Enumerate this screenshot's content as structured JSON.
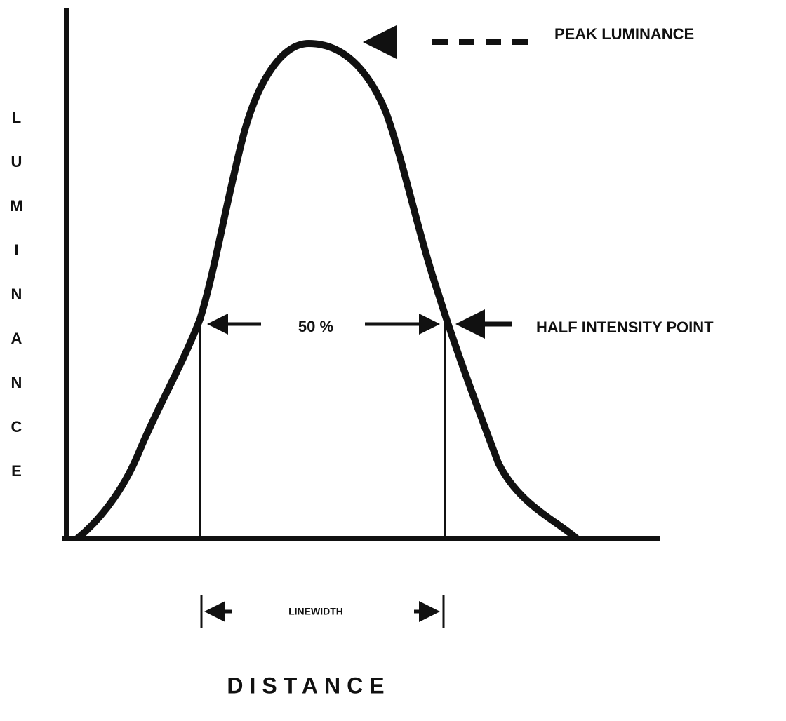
{
  "axis_label_y": "LUMINANCE",
  "axis_label_x": "DISTANCE",
  "peak_label": "PEAK LUMINANCE",
  "half_label": "HALF INTENSITY POINT",
  "percent_label": "50 %",
  "linewidth_label": "LINEWIDTH"
}
